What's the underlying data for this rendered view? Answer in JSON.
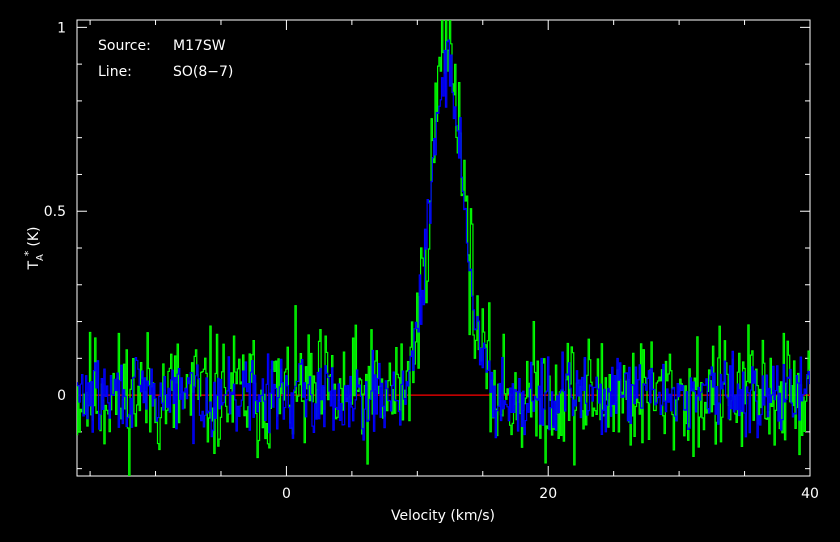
{
  "chart_data": {
    "type": "line",
    "xlabel": "Velocity (km/s)",
    "ylabel": "T",
    "ylabel_sub": "A",
    "ylabel_sup": "*",
    "ylabel_unit": "(K)",
    "xlim": [
      -16,
      40
    ],
    "ylim": [
      -0.22,
      1.02
    ],
    "xticks": [
      0,
      20,
      40
    ],
    "yticks": [
      0,
      0.5,
      1
    ],
    "xtick_labels": [
      "0",
      "20",
      "40"
    ],
    "ytick_labels": [
      "0",
      "0.5",
      "1"
    ],
    "grid": false,
    "baseline": 0,
    "annotations": [
      {
        "key": "Source:",
        "value": "M17SW"
      },
      {
        "key": "Line:",
        "value": "SO(8−7)"
      }
    ],
    "series": [
      {
        "color": "#00ff00",
        "noise": 0.085,
        "seed": 11,
        "peak": 0.97,
        "center": 12.3,
        "sigma": 1.25
      },
      {
        "color": "#0000ff",
        "noise": 0.05,
        "seed": 29,
        "peak": 0.9,
        "center": 12.3,
        "sigma": 1.25
      }
    ],
    "baseline_color": "#ff0000"
  }
}
